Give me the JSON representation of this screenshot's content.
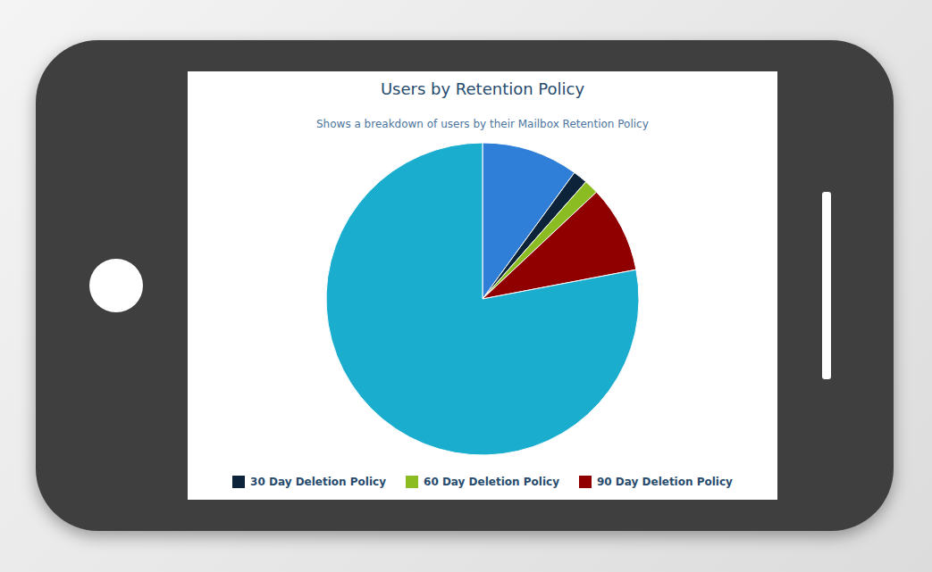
{
  "chart_data": {
    "type": "pie",
    "title": "Users by Retention Policy",
    "subtitle": "Shows a breakdown of users by their Mailbox Retention Policy",
    "categories": [
      null,
      "30 Day Deletion Policy",
      "60 Day Deletion Policy",
      "90 Day Deletion Policy",
      null
    ],
    "values": [
      10,
      1.5,
      1.5,
      9,
      78
    ],
    "colors": [
      "#2f7ed8",
      "#0d233a",
      "#8bbc21",
      "#910000",
      "#1aadce"
    ],
    "legend": "bottom"
  }
}
